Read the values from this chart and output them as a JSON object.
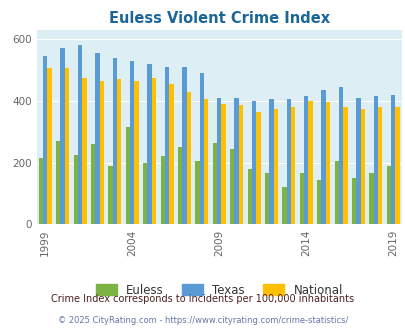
{
  "title": "Euless Violent Crime Index",
  "years": [
    1999,
    2000,
    2001,
    2002,
    2003,
    2004,
    2005,
    2006,
    2007,
    2008,
    2009,
    2010,
    2011,
    2012,
    2013,
    2014,
    2015,
    2016,
    2017,
    2018,
    2019
  ],
  "euless_vals": [
    215,
    270,
    225,
    260,
    190,
    315,
    200,
    220,
    250,
    205,
    265,
    245,
    180,
    165,
    120,
    165,
    145,
    205,
    150,
    165,
    190
  ],
  "texas_vals": [
    545,
    570,
    580,
    555,
    540,
    530,
    520,
    510,
    510,
    490,
    410,
    410,
    400,
    405,
    405,
    415,
    435,
    445,
    410,
    415,
    420
  ],
  "national_vals": [
    505,
    505,
    475,
    465,
    470,
    465,
    475,
    455,
    430,
    405,
    390,
    385,
    365,
    375,
    380,
    400,
    395,
    380,
    375,
    380,
    380
  ],
  "color_euless": "#7cb342",
  "color_texas": "#5b9bd5",
  "color_national": "#ffc000",
  "plot_bg": "#deeef5",
  "title_color": "#1a6699",
  "subtitle": "Crime Index corresponds to incidents per 100,000 inhabitants",
  "subtitle_color": "#4d2020",
  "footer": "© 2025 CityRating.com - https://www.cityrating.com/crime-statistics/",
  "footer_color": "#6677aa",
  "tick_years": [
    1999,
    2004,
    2009,
    2014,
    2019
  ],
  "ylim": [
    0,
    630
  ],
  "yticks": [
    0,
    200,
    400,
    600
  ],
  "bar_width": 0.25,
  "figsize": [
    4.06,
    3.3
  ],
  "dpi": 100
}
